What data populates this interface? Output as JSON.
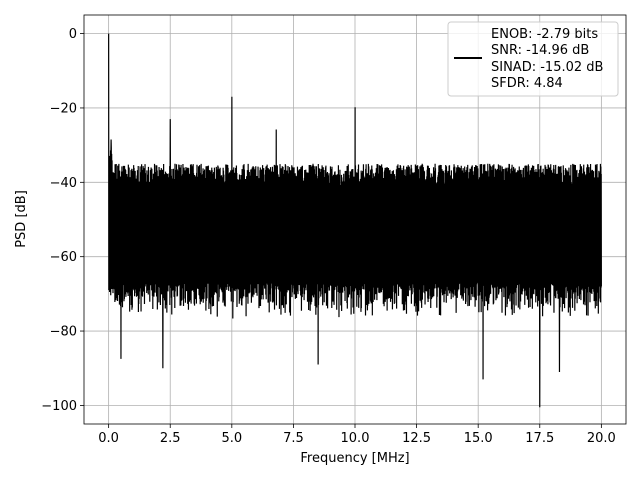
{
  "chart_data": {
    "type": "line",
    "xlabel": "Frequency [MHz]",
    "ylabel": "PSD [dB]",
    "xlim": [
      -1.0,
      21.0
    ],
    "ylim": [
      -105,
      5
    ],
    "xticks": [
      0.0,
      2.5,
      5.0,
      7.5,
      10.0,
      12.5,
      15.0,
      17.5,
      20.0
    ],
    "xtick_labels": [
      "0.0",
      "2.5",
      "5.0",
      "7.5",
      "10.0",
      "12.5",
      "15.0",
      "17.5",
      "20.0"
    ],
    "yticks": [
      0,
      -20,
      -40,
      -60,
      -80,
      -100
    ],
    "ytick_labels": [
      "0",
      "−20",
      "−40",
      "−60",
      "−80",
      "−100"
    ],
    "grid": true,
    "legend_position": "top-right",
    "legend_lines": [
      "ENOB: -2.79 bits",
      "SNR: -14.96 dB",
      "SINAD: -15.02 dB",
      "SFDR: 4.84"
    ],
    "series_color": "#000000",
    "noise_floor": {
      "upper_envelope": -34,
      "lower_envelope": -75,
      "min_dips": [
        -90,
        -93,
        -100
      ]
    },
    "spikes": [
      {
        "x": 0.0,
        "y": 0.0
      },
      {
        "x": 0.1,
        "y": -28.5
      },
      {
        "x": 2.5,
        "y": -23.0
      },
      {
        "x": 5.0,
        "y": -17.0
      },
      {
        "x": 6.8,
        "y": -25.8
      },
      {
        "x": 10.0,
        "y": -19.8
      }
    ],
    "dips": [
      {
        "x": 2.2,
        "y": -90.0
      },
      {
        "x": 8.5,
        "y": -89.0
      },
      {
        "x": 15.2,
        "y": -93.0
      },
      {
        "x": 17.5,
        "y": -100.5
      },
      {
        "x": 18.3,
        "y": -91.0
      },
      {
        "x": 0.5,
        "y": -87.5
      }
    ]
  }
}
